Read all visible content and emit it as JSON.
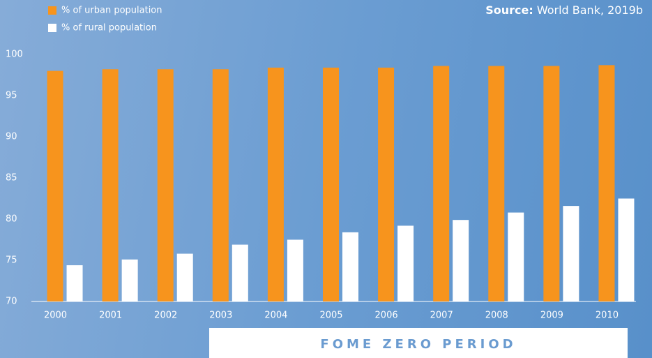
{
  "chart_data": {
    "type": "bar",
    "categories": [
      "2000",
      "2001",
      "2002",
      "2003",
      "2004",
      "2005",
      "2006",
      "2007",
      "2008",
      "2009",
      "2010"
    ],
    "series": [
      {
        "name": "% of urban population",
        "color": "#f7941d",
        "values": [
          98.0,
          98.2,
          98.2,
          98.2,
          98.4,
          98.4,
          98.4,
          98.6,
          98.6,
          98.6,
          98.7
        ]
      },
      {
        "name": "% of rural population",
        "color": "#ffffff",
        "values": [
          74.4,
          75.1,
          75.8,
          76.9,
          77.5,
          78.4,
          79.2,
          79.9,
          80.8,
          81.6,
          82.5
        ]
      }
    ],
    "ylim": [
      70,
      100
    ],
    "yticks": [
      70,
      75,
      80,
      85,
      90,
      95,
      100
    ],
    "legend": "top-left",
    "source_label": "Source:",
    "source_text": "World Bank, 2019b",
    "annotation": "FOME ZERO PERIOD"
  }
}
